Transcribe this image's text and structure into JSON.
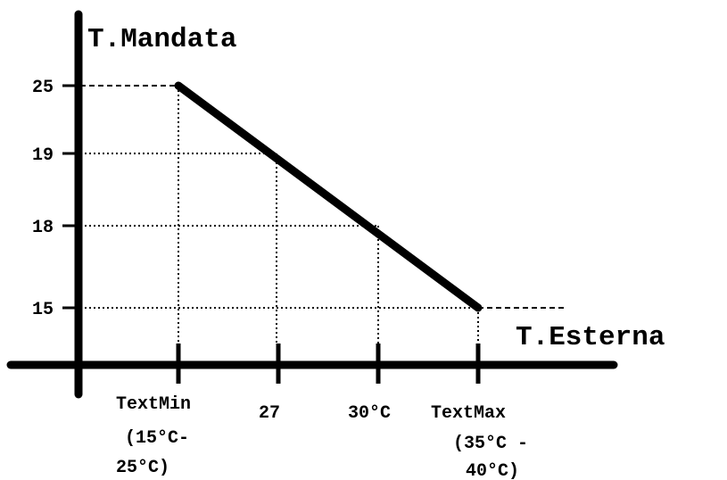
{
  "y_axis": {
    "label": "T.Mandata",
    "ticks": [
      "25",
      "19",
      "18",
      "15"
    ]
  },
  "x_axis": {
    "label": "T.Esterna",
    "ticks": [
      [
        "TextMin",
        "(15°C-",
        "25°C)"
      ],
      [
        "27"
      ],
      [
        "30°C"
      ],
      [
        "TextMax",
        "(35°C -",
        "40°C)"
      ]
    ]
  }
}
